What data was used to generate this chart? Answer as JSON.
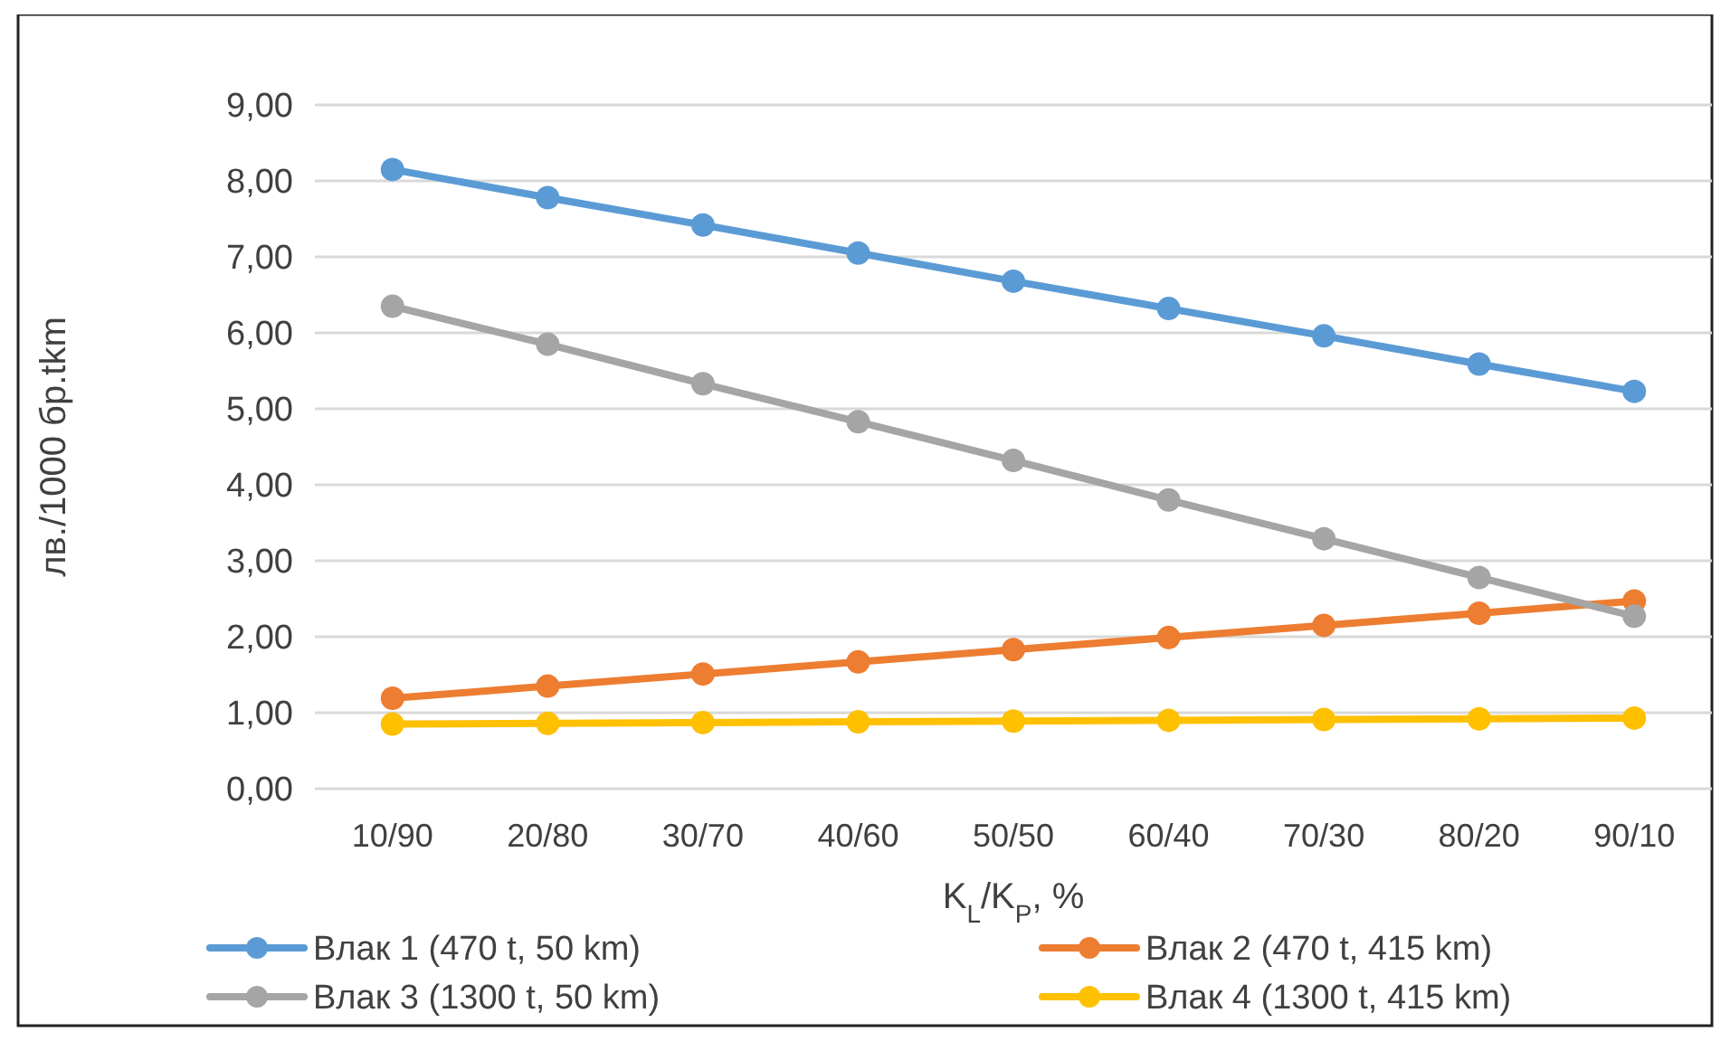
{
  "chart_data": {
    "type": "line",
    "ylabel": "лв./1000 бр.tkm",
    "xlabel": "K$_{L}$/K$_{P}$, %",
    "categories": [
      "10/90",
      "20/80",
      "30/70",
      "40/60",
      "50/50",
      "60/40",
      "70/30",
      "80/20",
      "90/10"
    ],
    "series": [
      {
        "name": "Влак 1 (470 t, 50 km)",
        "color": "#5b9bd5",
        "values": [
          8.15,
          7.78,
          7.42,
          7.05,
          6.68,
          6.32,
          5.96,
          5.59,
          5.23
        ]
      },
      {
        "name": "Влак 2 (470 t, 415 km)",
        "color": "#ed7d31",
        "values": [
          1.19,
          1.35,
          1.51,
          1.67,
          1.83,
          1.99,
          2.15,
          2.31,
          2.47
        ]
      },
      {
        "name": "Влак 3 (1300 t, 50 km)",
        "color": "#a5a5a5",
        "values": [
          6.35,
          5.85,
          5.33,
          4.83,
          4.32,
          3.8,
          3.29,
          2.78,
          2.27
        ]
      },
      {
        "name": "Влак 4 (1300 t, 415 km)",
        "color": "#ffc000",
        "values": [
          0.85,
          0.86,
          0.87,
          0.88,
          0.89,
          0.9,
          0.91,
          0.92,
          0.93
        ]
      }
    ],
    "ylim": [
      0,
      9
    ],
    "yticks": [
      {
        "value": 0,
        "label": "0,00"
      },
      {
        "value": 1,
        "label": "1,00"
      },
      {
        "value": 2,
        "label": "2,00"
      },
      {
        "value": 3,
        "label": "3,00"
      },
      {
        "value": 4,
        "label": "4,00"
      },
      {
        "value": 5,
        "label": "5,00"
      },
      {
        "value": 6,
        "label": "6,00"
      },
      {
        "value": 7,
        "label": "7,00"
      },
      {
        "value": 8,
        "label": "8,00"
      },
      {
        "value": 9,
        "label": "9,00"
      }
    ],
    "grid": "y",
    "legend": "bottom",
    "marker": "circle",
    "line_style": "solid"
  }
}
